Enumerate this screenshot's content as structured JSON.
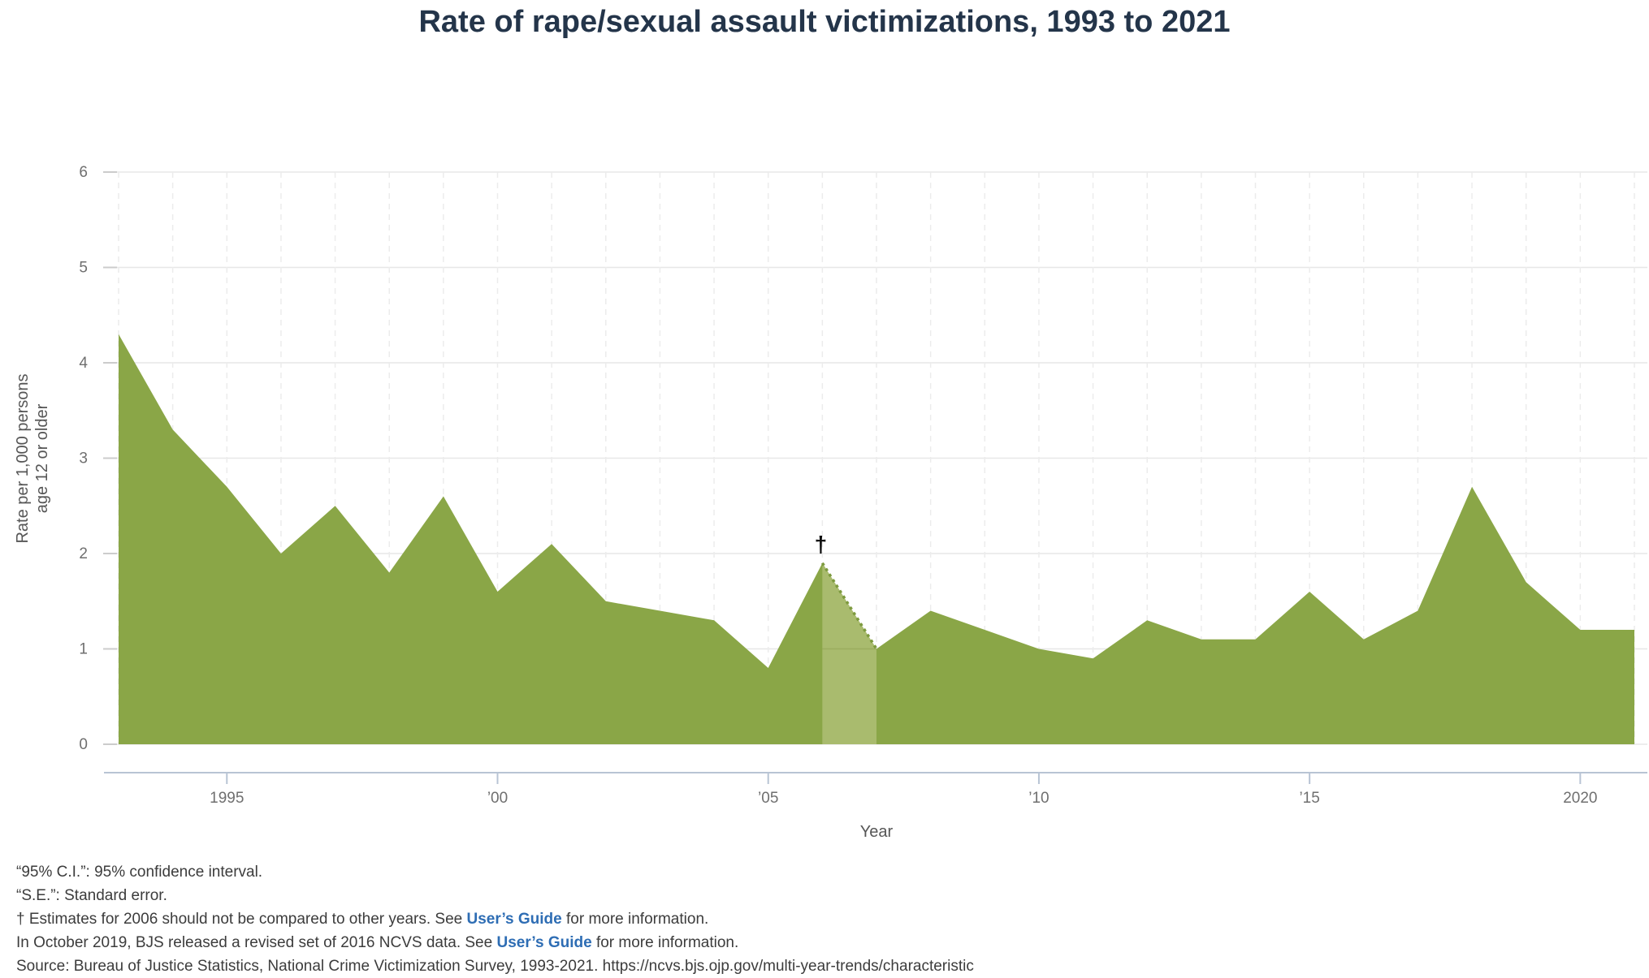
{
  "title": "Rate of rape/sexual assault victimizations, 1993 to 2021",
  "y_axis": {
    "title_line1": "Rate per 1,000 persons",
    "title_line2": "age 12 or older",
    "ticks": [
      0,
      1,
      2,
      3,
      4,
      5,
      6
    ]
  },
  "x_axis": {
    "title": "Year",
    "tick_years": [
      1995,
      2000,
      2005,
      2010,
      2015,
      2020
    ],
    "tick_labels": [
      "1995",
      "’00",
      "’05",
      "’10",
      "’15",
      "2020"
    ]
  },
  "chart_data": {
    "type": "area",
    "title": "Rate of rape/sexual assault victimizations, 1993 to 2021",
    "xlabel": "Year",
    "ylabel": "Rate per 1,000 persons age 12 or older",
    "xlim": [
      1993,
      2021
    ],
    "ylim": [
      0,
      6
    ],
    "grid": true,
    "x": [
      1993,
      1994,
      1995,
      1996,
      1997,
      1998,
      1999,
      2000,
      2001,
      2002,
      2003,
      2004,
      2005,
      2006,
      2007,
      2008,
      2009,
      2010,
      2011,
      2012,
      2013,
      2014,
      2015,
      2016,
      2017,
      2018,
      2019,
      2020,
      2021
    ],
    "values": [
      4.3,
      3.3,
      2.7,
      2.0,
      2.5,
      1.8,
      2.6,
      1.6,
      2.1,
      1.5,
      1.4,
      1.3,
      0.8,
      1.9,
      1.0,
      1.4,
      1.2,
      1.0,
      0.9,
      1.3,
      1.1,
      1.1,
      1.6,
      1.1,
      1.4,
      2.7,
      1.7,
      1.2,
      1.2
    ],
    "annotations": {
      "dagger_symbol": "†",
      "dagger_year": 2006,
      "dagger_note": "Estimates for 2006 should not be compared to other years.",
      "shaded_band_years": [
        2006,
        2007
      ]
    },
    "colors": {
      "area": "#8aa647",
      "band": "#a9bb6e",
      "dotted_edge": "#7d9a3e",
      "axis_line": "#b8c4d4",
      "gridline": "#e7e7e7",
      "dashed_gridline": "#ececec",
      "title_text": "#24354a",
      "link": "#2e6db4"
    }
  },
  "notes": {
    "ci": "“95% C.I.”: 95% confidence interval.",
    "se": "“S.E.”: Standard error.",
    "dagger_pre": "† Estimates for 2006 should not be compared to other years. See ",
    "users_guide_label": "User’s Guide",
    "dagger_post": " for more information.",
    "revision_pre": "In October 2019, BJS released a revised set of 2016 NCVS data. See ",
    "revision_post": " for more information.",
    "source": "Source: Bureau of Justice Statistics, National Crime Victimization Survey, 1993-2021. https://ncvs.bjs.ojp.gov/multi-year-trends/characteristic"
  }
}
